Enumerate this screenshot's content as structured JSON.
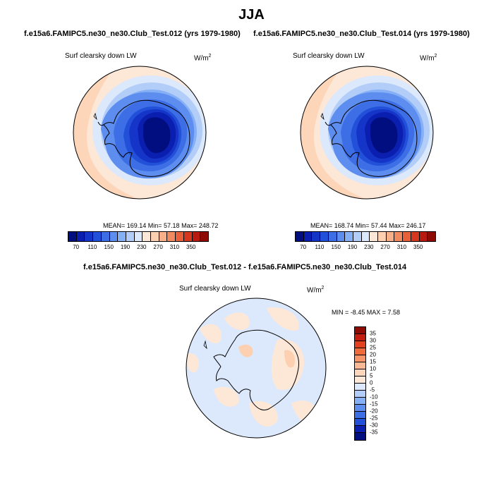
{
  "title": "JJA",
  "left_panel": {
    "subtitle": "f.e15a6.FAMIPC5.ne30_ne30.Club_Test.012 (yrs 1979-1980)",
    "label": "Surf clearsky down LW",
    "units": "W/m",
    "units_sup": "2",
    "stats": "MEAN= 169.14  Min=  57.18  Max= 248.72"
  },
  "right_panel": {
    "subtitle": "f.e15a6.FAMIPC5.ne30_ne30.Club_Test.014 (yrs 1979-1980)",
    "label": "Surf clearsky down LW",
    "units": "W/m",
    "units_sup": "2",
    "stats": "MEAN= 168.74  Min=  57.44  Max= 246.17"
  },
  "diff_panel": {
    "subtitle": "f.e15a6.FAMIPC5.ne30_ne30.Club_Test.012 - f.e15a6.FAMIPC5.ne30_ne30.Club_Test.014",
    "label": "Surf clearsky down LW",
    "units": "W/m",
    "units_sup": "2",
    "stats": "MIN =  -8.45 MAX =   7.58"
  },
  "colorbar_main": {
    "colors": [
      "#000e80",
      "#0a1fb0",
      "#1535c8",
      "#2350d8",
      "#3d6ee5",
      "#5d8eef",
      "#86b0f6",
      "#b1cdf8",
      "#dce8fb",
      "#fde8d8",
      "#fcd0b0",
      "#f8b088",
      "#f28a60",
      "#e8603a",
      "#d6381f",
      "#b81a10",
      "#8e0a05"
    ],
    "ticks": [
      "70",
      "110",
      "150",
      "190",
      "230",
      "270",
      "310",
      "350"
    ]
  },
  "colorbar_diff": {
    "colors": [
      "#8e0a05",
      "#c21d0f",
      "#e2401f",
      "#f06b3c",
      "#f7956a",
      "#fbb895",
      "#fdd6bb",
      "#fde8d8",
      "#dce8fb",
      "#b1cdf8",
      "#86b0f6",
      "#5d8eef",
      "#3d6ee5",
      "#2350d8",
      "#0a1fb0",
      "#000e80"
    ],
    "ticks": [
      "35",
      "30",
      "25",
      "20",
      "15",
      "10",
      "5",
      "0",
      "-5",
      "-10",
      "-15",
      "-20",
      "-25",
      "-30",
      "-35"
    ]
  }
}
